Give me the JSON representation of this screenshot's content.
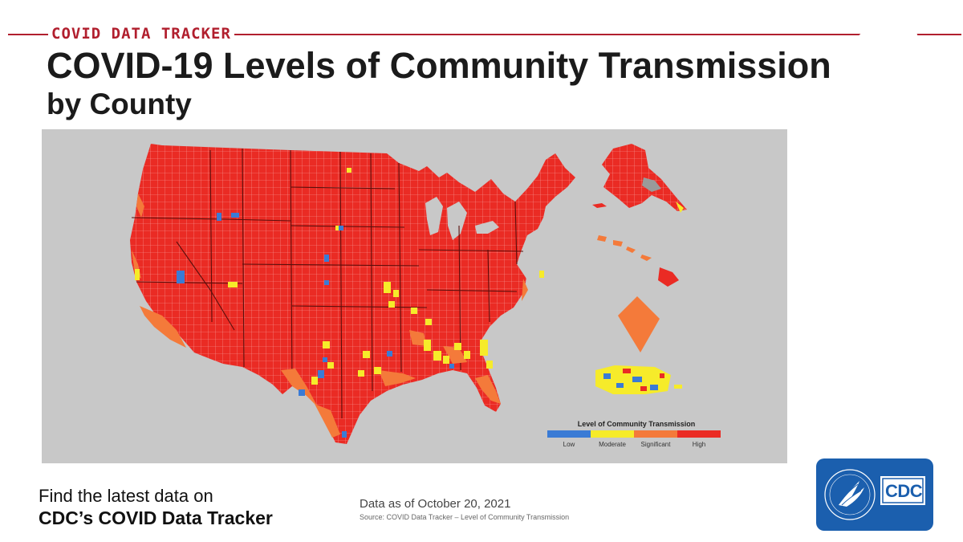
{
  "header": {
    "tracker_label": "COVID DATA TRACKER",
    "title_line1": "COVID-19 Levels of Community Transmission",
    "title_line2": "by County",
    "accent_color": "#b11f2e"
  },
  "map": {
    "legend": {
      "title": "Level of Community Transmission",
      "levels": [
        {
          "label": "Low",
          "color": "#3a7bd5"
        },
        {
          "label": "Moderate",
          "color": "#f6eb2a"
        },
        {
          "label": "Significant",
          "color": "#f47a3a"
        },
        {
          "label": "High",
          "color": "#ea2b24"
        }
      ]
    },
    "background_color": "#c8c8c8",
    "county_line_color": "#f7a3a0"
  },
  "footer": {
    "cta_line1": "Find the latest data on",
    "cta_line2": "CDC’s COVID Data Tracker",
    "data_as_of": "Data as of October 20, 2021",
    "source": "Source: COVID Data Tracker – Level of Community Transmission",
    "logo_text": "CDC",
    "logo_color": "#1b5fae"
  }
}
